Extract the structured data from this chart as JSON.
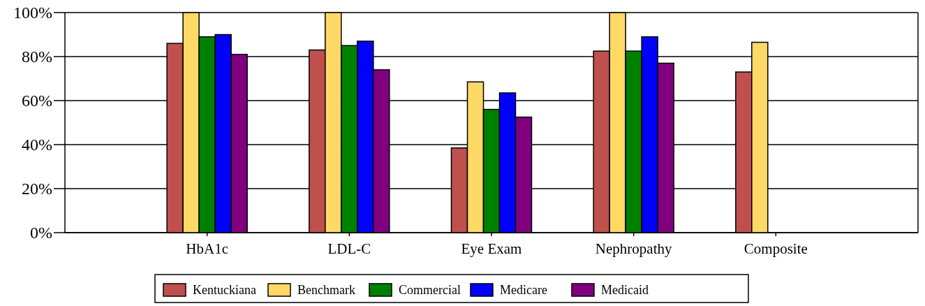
{
  "chart_data": {
    "type": "bar",
    "categories": [
      "HbA1c",
      "LDL-C",
      "Eye Exam",
      "Nephropathy",
      "Composite"
    ],
    "series": [
      {
        "name": "Kentuckiana",
        "color": "#c0504d",
        "values": [
          86,
          83,
          38.5,
          82.5,
          73
        ]
      },
      {
        "name": "Benchmark",
        "color": "#ffd966",
        "values": [
          100,
          100,
          68.5,
          100,
          86.5
        ]
      },
      {
        "name": "Commercial",
        "color": "#008000",
        "values": [
          89,
          85,
          56,
          82.5,
          null
        ]
      },
      {
        "name": "Medicare",
        "color": "#0000ff",
        "values": [
          90,
          87,
          63.5,
          89,
          null
        ]
      },
      {
        "name": "Medicaid",
        "color": "#800080",
        "values": [
          81,
          74,
          52.5,
          77,
          null
        ]
      }
    ],
    "ylim": [
      0,
      100
    ],
    "yticks": [
      {
        "value": 0,
        "label": "0%"
      },
      {
        "value": 20,
        "label": "20%"
      },
      {
        "value": 40,
        "label": "40%"
      },
      {
        "value": 60,
        "label": "60%"
      },
      {
        "value": 80,
        "label": "80%"
      },
      {
        "value": 100,
        "label": "100%"
      }
    ],
    "grid": "y",
    "legend": "bottom"
  }
}
